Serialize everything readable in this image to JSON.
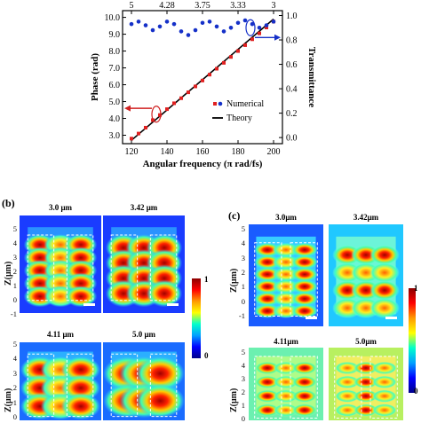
{
  "chart_data": {
    "type": "scatter",
    "xlabel": "Angular frequency (π rad/fs)",
    "ylabel_left": "Phase (rad)",
    "ylabel_right": "Transmittance",
    "xlim": [
      115,
      205
    ],
    "ylim_left": [
      2.5,
      10.4
    ],
    "ylim_right": [
      -0.05,
      1.04
    ],
    "x_ticks": [
      120,
      140,
      160,
      180,
      200
    ],
    "y_left_ticks": [
      "3.0",
      "4.0",
      "5.0",
      "6.0",
      "7.0",
      "8.0",
      "9.0",
      "10.0"
    ],
    "y_right_ticks": [
      "0.0",
      "0.2",
      "0.4",
      "0.6",
      "0.8",
      "1.0"
    ],
    "top_ticks": [
      "5",
      "4.28",
      "3.75",
      "3.33",
      "3"
    ],
    "legend": {
      "numerical": "Numerical",
      "theory": "Theory"
    },
    "series": [
      {
        "name": "Numerical",
        "phase_x": [
          120,
          124,
          128,
          132,
          136,
          140,
          144,
          148,
          152,
          156,
          160,
          164,
          168,
          172,
          176,
          180,
          184,
          188,
          192,
          196,
          200
        ],
        "phase_y": [
          2.8,
          3.1,
          3.45,
          3.9,
          4.2,
          4.55,
          4.9,
          5.2,
          5.55,
          5.9,
          6.25,
          6.6,
          6.95,
          7.3,
          7.65,
          8.0,
          8.35,
          8.7,
          9.05,
          9.4,
          9.75
        ],
        "trans_x": [
          120,
          124,
          128,
          132,
          136,
          140,
          144,
          148,
          152,
          156,
          160,
          164,
          168,
          172,
          176,
          180,
          184,
          188,
          192,
          196,
          200
        ],
        "trans_y": [
          0.93,
          0.95,
          0.92,
          0.88,
          0.91,
          0.95,
          0.93,
          0.87,
          0.84,
          0.88,
          0.94,
          0.95,
          0.91,
          0.87,
          0.9,
          0.94,
          0.96,
          0.93,
          0.9,
          0.92,
          0.95
        ]
      },
      {
        "name": "Theory",
        "x": [
          120,
          200
        ],
        "y": [
          2.7,
          9.9
        ]
      }
    ]
  },
  "panel_b": {
    "letter": "(b)",
    "titles": [
      "3.0 μm",
      "3.42 μm",
      "4.11 μm",
      "5.0 μm"
    ],
    "zlabel": "Z(μm)",
    "yticks": [
      "5",
      "4",
      "3",
      "2",
      "1",
      "0",
      "-1"
    ],
    "colorbar": {
      "max": "1",
      "min": "0"
    }
  },
  "panel_c": {
    "letter": "(c)",
    "titles": [
      "3.0μm",
      "3.42μm",
      "4.11μm",
      "5.0μm"
    ],
    "zlabel": "Z(μm)",
    "yticks": [
      "5",
      "4",
      "3",
      "2",
      "1",
      "0",
      "-1"
    ],
    "colorbar": {
      "max": "1",
      "min": "0"
    }
  }
}
